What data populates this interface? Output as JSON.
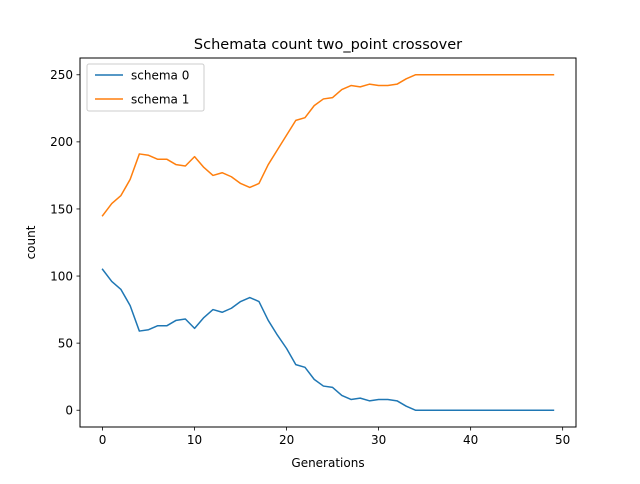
{
  "chart_data": {
    "type": "line",
    "title": "Schemata count two_point crossover",
    "xlabel": "Generations",
    "ylabel": "count",
    "xlim": [
      -2.45,
      51.45
    ],
    "ylim": [
      -12.5,
      262.5
    ],
    "xticks": [
      0,
      10,
      20,
      30,
      40,
      50
    ],
    "yticks": [
      0,
      50,
      100,
      150,
      200,
      250
    ],
    "grid": false,
    "legend_position": "top-left",
    "x": [
      0,
      1,
      2,
      3,
      4,
      5,
      6,
      7,
      8,
      9,
      10,
      11,
      12,
      13,
      14,
      15,
      16,
      17,
      18,
      19,
      20,
      21,
      22,
      23,
      24,
      25,
      26,
      27,
      28,
      29,
      30,
      31,
      32,
      33,
      34,
      35,
      36,
      37,
      38,
      39,
      40,
      41,
      42,
      43,
      44,
      45,
      46,
      47,
      48,
      49
    ],
    "series": [
      {
        "name": "schema 0",
        "color": "#1f77b4",
        "values": [
          105,
          96,
          90,
          78,
          59,
          60,
          63,
          63,
          67,
          68,
          61,
          69,
          75,
          73,
          76,
          81,
          84,
          81,
          67,
          56,
          46,
          34,
          32,
          23,
          18,
          17,
          11,
          8,
          9,
          7,
          8,
          8,
          7,
          3,
          0,
          0,
          0,
          0,
          0,
          0,
          0,
          0,
          0,
          0,
          0,
          0,
          0,
          0,
          0,
          0
        ]
      },
      {
        "name": "schema 1",
        "color": "#ff7f0e",
        "values": [
          145,
          154,
          160,
          172,
          191,
          190,
          187,
          187,
          183,
          182,
          189,
          181,
          175,
          177,
          174,
          169,
          166,
          169,
          183,
          194,
          205,
          216,
          218,
          227,
          232,
          233,
          239,
          242,
          241,
          243,
          242,
          242,
          243,
          247,
          250,
          250,
          250,
          250,
          250,
          250,
          250,
          250,
          250,
          250,
          250,
          250,
          250,
          250,
          250,
          250
        ]
      }
    ]
  }
}
